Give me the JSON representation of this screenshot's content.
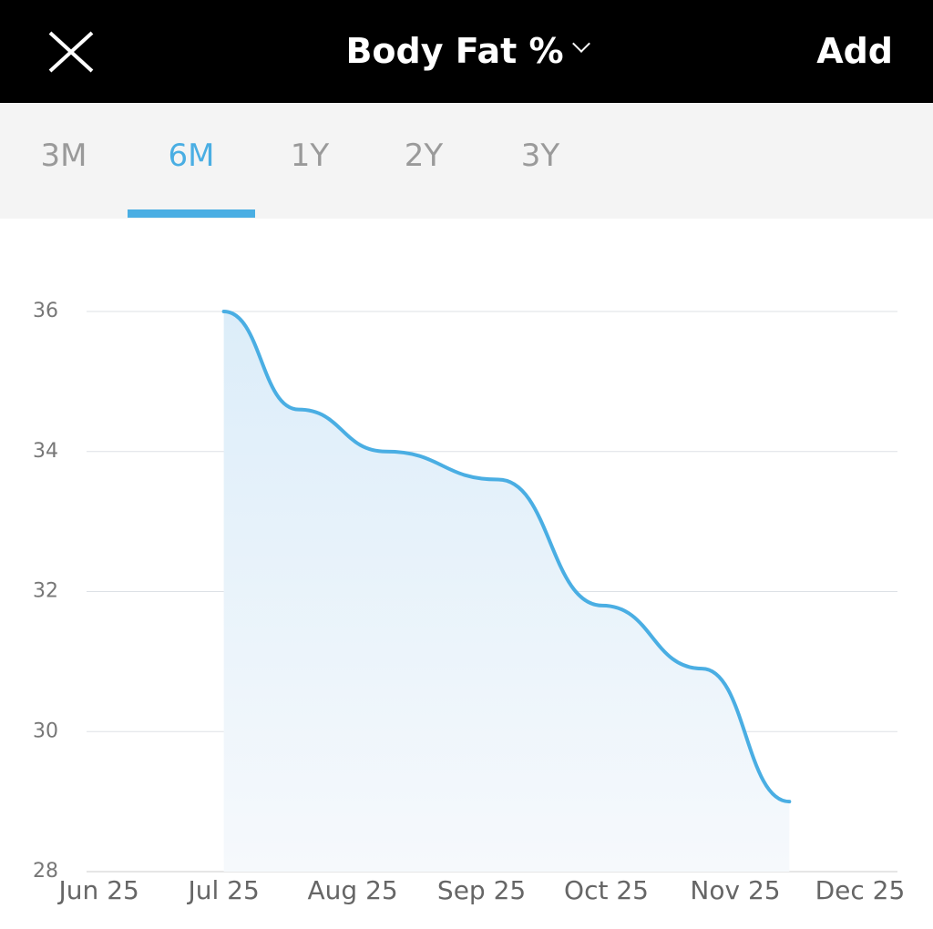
{
  "header": {
    "title": "Body Fat %",
    "action": "Add"
  },
  "tabs": {
    "items": [
      "3M",
      "6M",
      "1Y",
      "2Y",
      "3Y"
    ],
    "selected": 1
  },
  "chart_data": {
    "type": "area",
    "series": [
      {
        "color": "#4aaee3",
        "x": [
          30,
          48,
          69,
          96,
          121,
          145,
          166
        ],
        "values": [
          36,
          34.6,
          34.0,
          33.6,
          31.8,
          30.9,
          29.0
        ]
      }
    ],
    "xlim": [
      -3,
      192
    ],
    "xticks": [
      {
        "value": 0,
        "label": "Jun 25"
      },
      {
        "value": 30,
        "label": "Jul 25"
      },
      {
        "value": 61,
        "label": "Aug 25"
      },
      {
        "value": 92,
        "label": "Sep 25"
      },
      {
        "value": 122,
        "label": "Oct 25"
      },
      {
        "value": 153,
        "label": "Nov 25"
      },
      {
        "value": 183,
        "label": "Dec 25"
      }
    ],
    "ylim": [
      28,
      36
    ],
    "yticks": [
      28,
      30,
      32,
      34,
      36
    ],
    "grid": true
  }
}
